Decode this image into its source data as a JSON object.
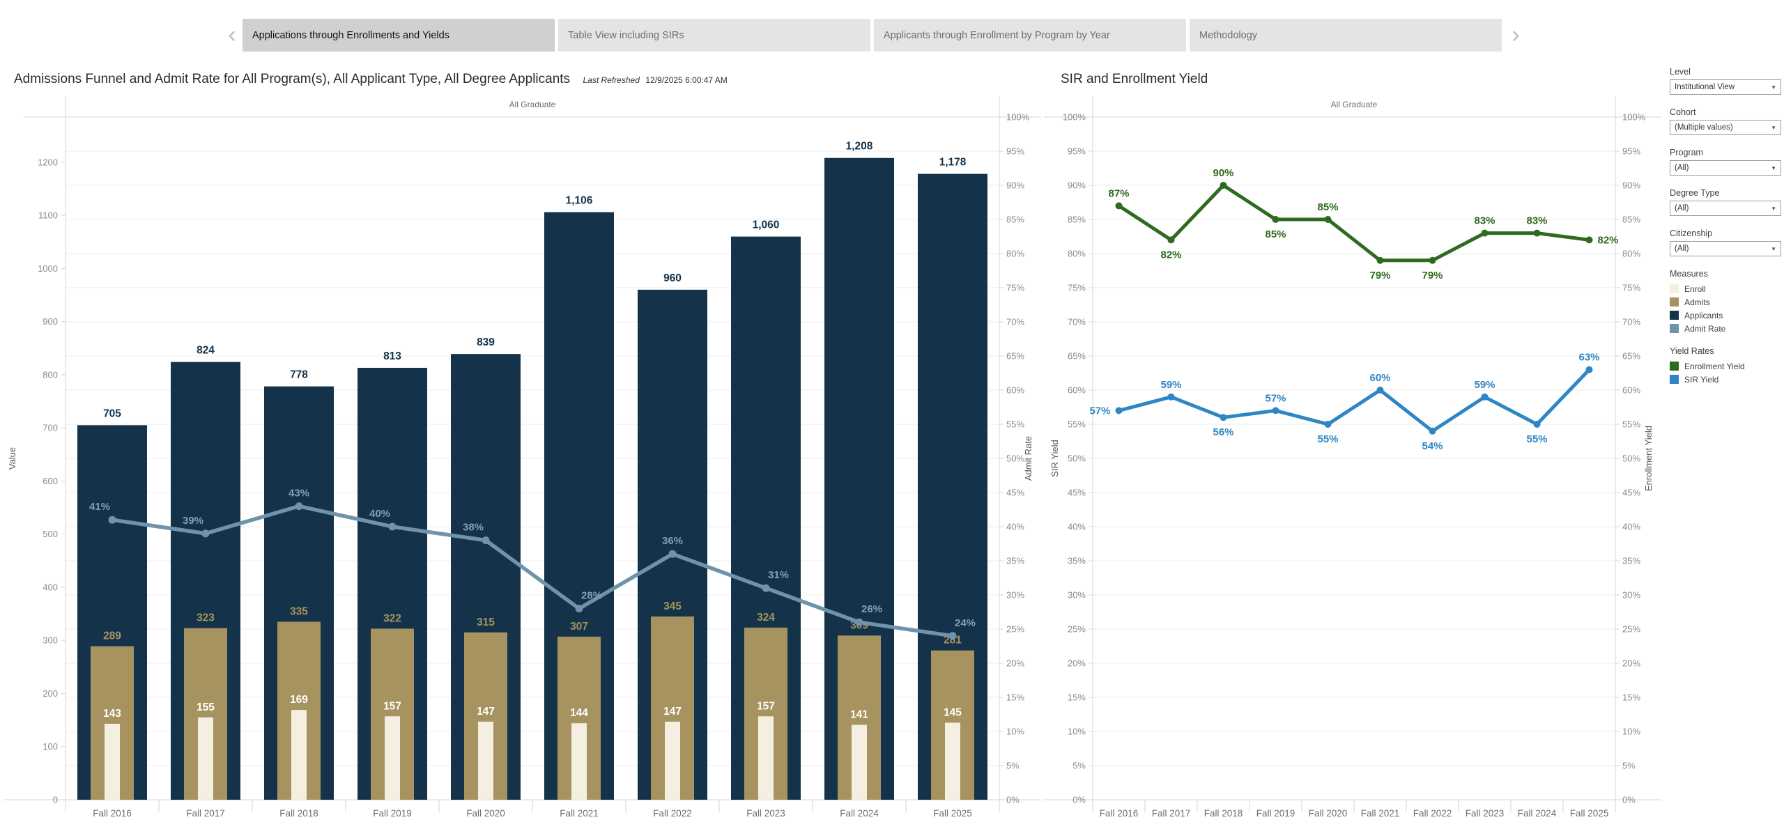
{
  "tabs": {
    "prev_icon": "‹",
    "next_icon": "›",
    "items": [
      {
        "label": "Applications through Enrollments and Yields",
        "selected": true
      },
      {
        "label": "Table View including SIRs",
        "selected": false
      },
      {
        "label": "Applicants through Enrollment by Program by Year",
        "selected": false
      },
      {
        "label": "Methodology",
        "selected": false
      }
    ]
  },
  "left_chart": {
    "title": "Admissions Funnel and Admit Rate for All Program(s), All Applicant Type, All Degree Applicants",
    "last_refreshed_label": "Last Refreshed",
    "last_refreshed_value": "12/9/2025 6:00:47 AM"
  },
  "right_chart": {
    "title": "SIR and Enrollment Yield"
  },
  "sidebar": {
    "filters": [
      {
        "label": "Level",
        "value": "Institutional View"
      },
      {
        "label": "Cohort",
        "value": "(Multiple values)"
      },
      {
        "label": "Program",
        "value": "(All)"
      },
      {
        "label": "Degree Type",
        "value": "(All)"
      },
      {
        "label": "Citizenship",
        "value": "(All)"
      }
    ],
    "legends": [
      {
        "title": "Measures",
        "items": [
          {
            "label": "Enroll",
            "color": "#f4efe1"
          },
          {
            "label": "Admits",
            "color": "#a7935f"
          },
          {
            "label": "Applicants",
            "color": "#14334a"
          },
          {
            "label": "Admit Rate",
            "color": "#6f93aa"
          }
        ]
      },
      {
        "title": "Yield Rates",
        "items": [
          {
            "label": "Enrollment Yield",
            "color": "#2e6b1e"
          },
          {
            "label": "SIR Yield",
            "color": "#2e86c4"
          }
        ]
      }
    ]
  },
  "chart_data": [
    {
      "type": "bar",
      "title": "Admissions Funnel and Admit Rate for All Program(s), All Applicant Type, All Degree Applicants",
      "pane_header": "All Graduate",
      "xlabel": "",
      "ylabel": "Value",
      "y2label": "Admit Rate",
      "ylim": [
        0,
        1285
      ],
      "ytick_step": 100,
      "ytick_max": 1200,
      "y2lim": [
        0,
        100
      ],
      "y2tick_step": 5,
      "grid": true,
      "categories": [
        "Fall 2016",
        "Fall 2017",
        "Fall 2018",
        "Fall 2019",
        "Fall 2020",
        "Fall 2021",
        "Fall 2022",
        "Fall 2023",
        "Fall 2024",
        "Fall 2025"
      ],
      "series": [
        {
          "name": "Applicants",
          "type": "bar",
          "color": "#14334a",
          "values": [
            705,
            824,
            778,
            813,
            839,
            1106,
            960,
            1060,
            1208,
            1178
          ]
        },
        {
          "name": "Admits",
          "type": "bar",
          "color": "#a7935f",
          "values": [
            289,
            323,
            335,
            322,
            315,
            307,
            345,
            324,
            309,
            281
          ]
        },
        {
          "name": "Enroll",
          "type": "bar",
          "color": "#f4efe1",
          "values": [
            143,
            155,
            169,
            157,
            147,
            144,
            147,
            157,
            141,
            145
          ]
        },
        {
          "name": "Admit Rate",
          "type": "line",
          "axis": "percent",
          "color": "#6f93aa",
          "label_color": "#84a0b1",
          "values": [
            41,
            39,
            43,
            40,
            38,
            28,
            36,
            31,
            26,
            24
          ]
        }
      ]
    },
    {
      "type": "line",
      "title": "SIR and Enrollment Yield",
      "pane_header": "All Graduate",
      "xlabel": "",
      "ylabel": "SIR Yield",
      "y2label": "Enrollment Yield",
      "ylim": [
        0,
        100
      ],
      "ytick_step": 5,
      "grid": true,
      "legend_position": "right-sidebar",
      "categories": [
        "Fall 2016",
        "Fall 2017",
        "Fall 2018",
        "Fall 2019",
        "Fall 2020",
        "Fall 2021",
        "Fall 2022",
        "Fall 2023",
        "Fall 2024",
        "Fall 2025"
      ],
      "series": [
        {
          "name": "Enrollment Yield",
          "color": "#2e6b1e",
          "values": [
            87,
            82,
            90,
            85,
            85,
            79,
            79,
            83,
            83,
            82
          ],
          "label_pos": [
            "above",
            "below",
            "above",
            "below",
            "above",
            "below",
            "below",
            "above",
            "above",
            "right"
          ]
        },
        {
          "name": "SIR Yield",
          "color": "#2e86c4",
          "values": [
            57,
            59,
            56,
            57,
            55,
            60,
            54,
            59,
            55,
            63
          ],
          "label_pos": [
            "left",
            "above",
            "below",
            "above",
            "below",
            "above",
            "below",
            "above",
            "below",
            "above"
          ]
        }
      ]
    }
  ]
}
